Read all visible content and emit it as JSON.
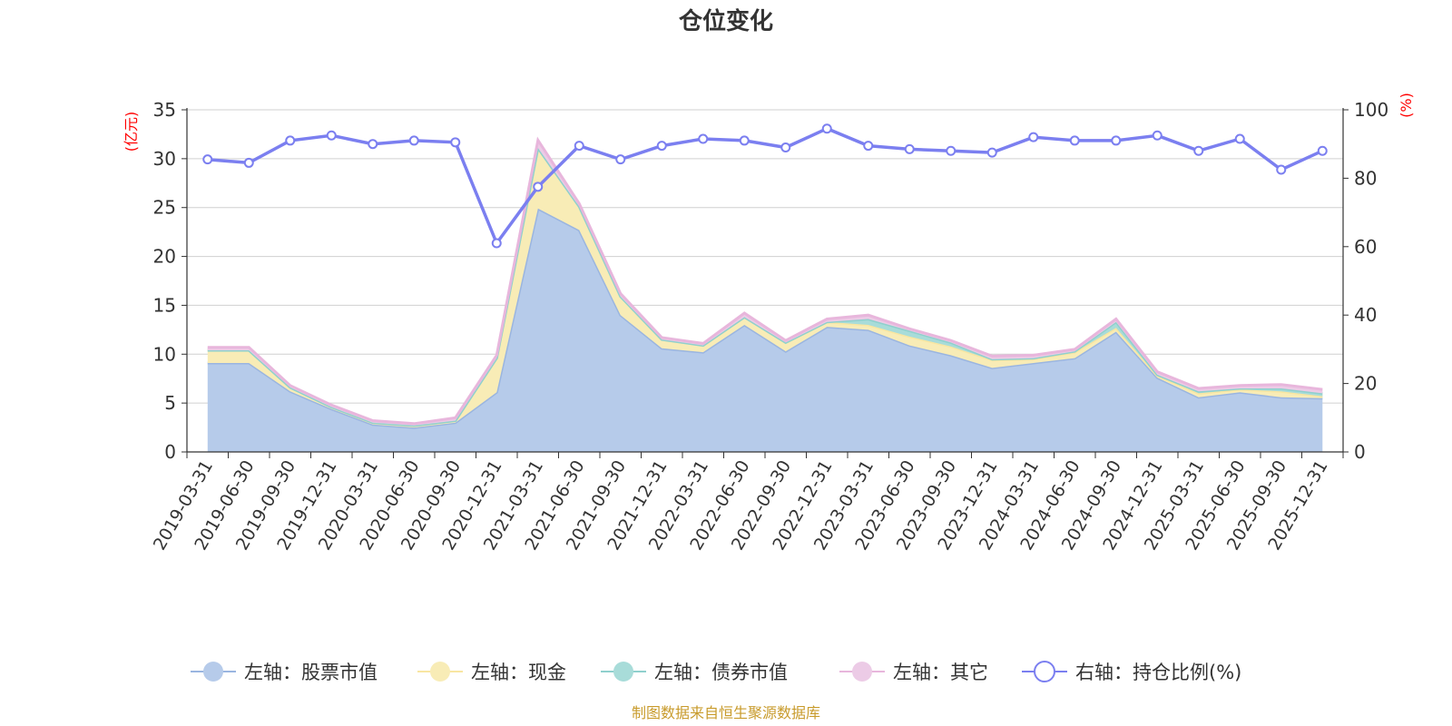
{
  "chart_data": {
    "type": "area",
    "title": "仓位变化",
    "left_axis": {
      "unit": "(亿元)",
      "ylim": [
        0,
        35
      ],
      "ticks": [
        0,
        5,
        10,
        15,
        20,
        25,
        30,
        35
      ]
    },
    "right_axis": {
      "unit": "(%)",
      "ylim": [
        0,
        100
      ],
      "ticks": [
        0,
        20,
        40,
        60,
        80,
        100
      ]
    },
    "categories": [
      "2019-03-31",
      "2019-06-30",
      "2019-09-30",
      "2019-12-31",
      "2020-03-31",
      "2020-06-30",
      "2020-09-30",
      "2020-12-31",
      "2021-03-31",
      "2021-06-30",
      "2021-09-30",
      "2021-12-31",
      "2022-03-31",
      "2022-06-30",
      "2022-09-30",
      "2022-12-31",
      "2023-03-31",
      "2023-06-30",
      "2023-09-30",
      "2023-12-31",
      "2024-03-31",
      "2024-06-30",
      "2024-09-30",
      "2024-12-31",
      "2025-03-31",
      "2025-06-30",
      "2025-09-30",
      "2025-12-31"
    ],
    "series": [
      {
        "name": "左轴：股票市值",
        "axis": "left",
        "type": "stacked-area",
        "color": "#9ab5e0",
        "fill": "#b6cbea",
        "values": [
          9.1,
          9.1,
          6.2,
          4.4,
          2.8,
          2.5,
          3.0,
          6.1,
          24.9,
          22.7,
          14.0,
          10.6,
          10.2,
          13.0,
          10.3,
          12.8,
          12.5,
          10.9,
          9.9,
          8.6,
          9.1,
          9.6,
          12.3,
          7.6,
          5.6,
          6.1,
          5.6,
          5.5
        ]
      },
      {
        "name": "左轴：现金",
        "axis": "left",
        "type": "stacked-area",
        "color": "#f8e6a2",
        "fill": "#f8ecb6",
        "values": [
          1.3,
          1.3,
          0.4,
          0.2,
          0.2,
          0.2,
          0.2,
          3.5,
          6.2,
          2.4,
          1.9,
          0.9,
          0.7,
          0.8,
          0.9,
          0.5,
          0.5,
          0.9,
          0.9,
          0.8,
          0.4,
          0.6,
          0.4,
          0.2,
          0.4,
          0.3,
          0.6,
          0.2
        ]
      },
      {
        "name": "左轴：债券市值",
        "axis": "left",
        "type": "stacked-area",
        "color": "#8fd0cd",
        "fill": "#a8dcd9",
        "values": [
          0,
          0,
          0,
          0,
          0,
          0,
          0,
          0,
          0,
          0,
          0,
          0,
          0,
          0,
          0,
          0,
          0.6,
          0.6,
          0.4,
          0.1,
          0.1,
          0.1,
          0.6,
          0.1,
          0.2,
          0.1,
          0.3,
          0.3
        ]
      },
      {
        "name": "左轴：其它",
        "axis": "left",
        "type": "stacked-area",
        "color": "#e8b6dc",
        "fill": "#eccbe6",
        "values": [
          0.3,
          0.3,
          0.2,
          0.2,
          0.2,
          0.2,
          0.3,
          0.3,
          0.8,
          0.3,
          0.3,
          0.2,
          0.2,
          0.4,
          0.2,
          0.3,
          0.4,
          0.2,
          0.2,
          0.3,
          0.3,
          0.2,
          0.3,
          0.3,
          0.3,
          0.3,
          0.4,
          0.4
        ]
      },
      {
        "name": "右轴：持仓比例(%)",
        "axis": "right",
        "type": "line",
        "color": "#7b7ff0",
        "values": [
          85.5,
          84.5,
          91.0,
          92.5,
          90.0,
          91.0,
          90.5,
          61.0,
          77.5,
          89.5,
          85.5,
          89.5,
          91.5,
          91.0,
          89.0,
          94.5,
          89.5,
          88.5,
          88.0,
          87.5,
          92.0,
          91.0,
          91.0,
          92.5,
          88.0,
          91.5,
          82.5,
          88.0
        ]
      }
    ],
    "legend_position": "bottom-center",
    "grid": true
  },
  "footer": {
    "source": "制图数据来自恒生聚源数据库"
  }
}
